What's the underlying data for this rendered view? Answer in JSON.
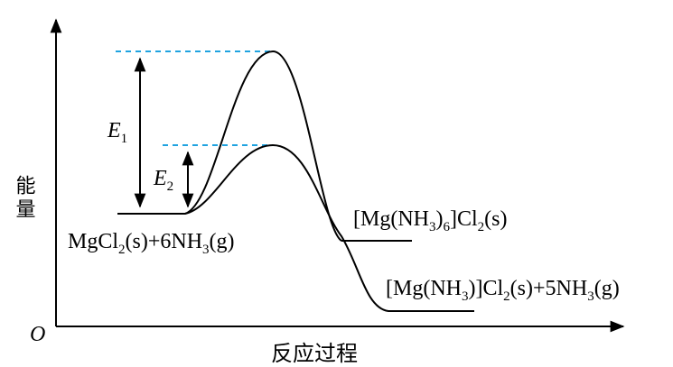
{
  "axes": {
    "y_label": "能量",
    "x_label": "反应过程",
    "origin_label": "O"
  },
  "energy_arrows": {
    "e1": {
      "letter": "E",
      "subscript": "1"
    },
    "e2": {
      "letter": "E",
      "subscript": "2"
    }
  },
  "species": {
    "reactants": [
      "MgCl",
      "2",
      "(s)+6NH",
      "3",
      "(g)"
    ],
    "intermediate": [
      "[Mg(NH",
      "3",
      ")",
      "6",
      "]Cl",
      "2",
      "(s)"
    ],
    "final_products": [
      "[Mg(NH",
      "3",
      ")]Cl",
      "2",
      "(s)+5NH",
      "3",
      "(g)"
    ]
  },
  "colors": {
    "curve": "#000000",
    "guide_dashed": "#1fa3e0"
  }
}
